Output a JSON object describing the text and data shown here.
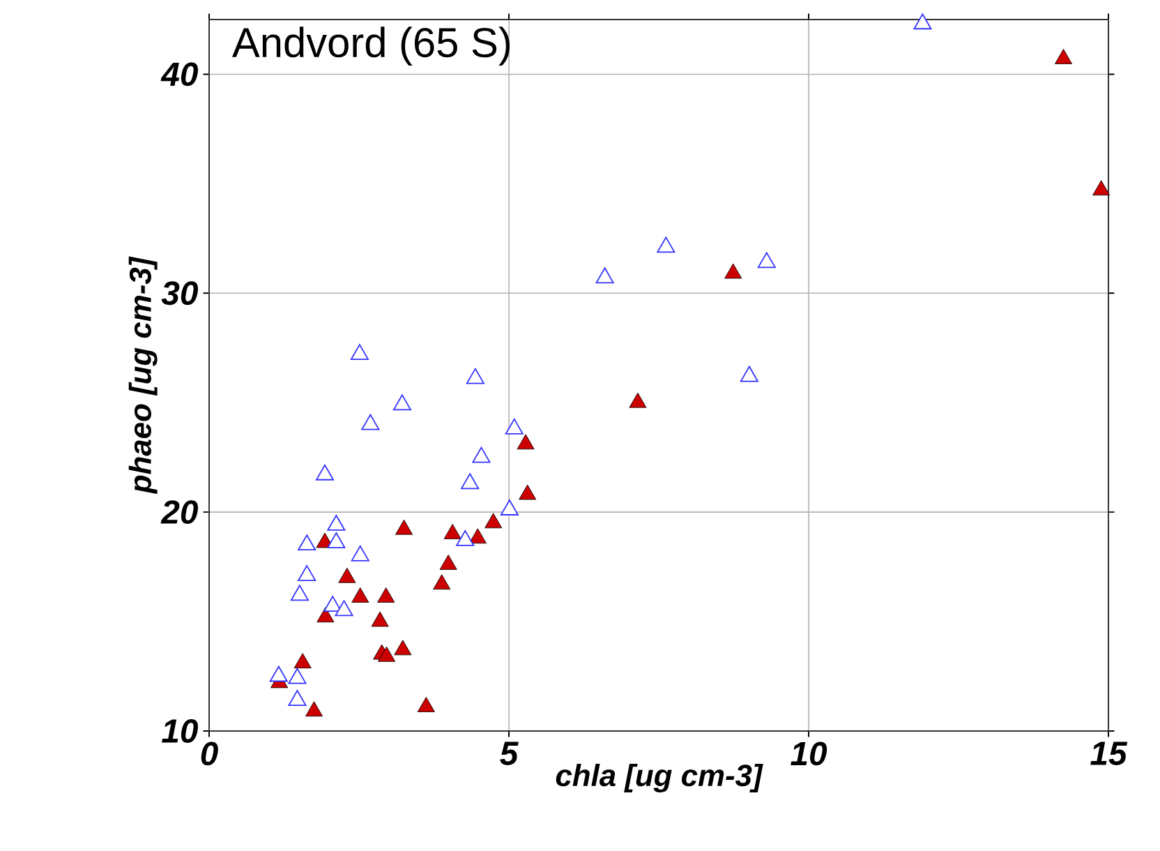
{
  "chart_data": {
    "type": "scatter",
    "title": "Andvord (65 S)",
    "xlabel": "chla [ug cm-3]",
    "ylabel": "phaeo [ug cm-3]",
    "xlim": [
      0,
      15
    ],
    "ylim": [
      10,
      42.5
    ],
    "xticks": [
      0,
      5,
      10,
      15
    ],
    "yticks": [
      10,
      20,
      30,
      40
    ],
    "grid": true,
    "marker": "triangle",
    "series": [
      {
        "color": "#cc0000",
        "x": [
          14.25,
          14.88,
          8.74,
          7.15,
          5.28,
          5.31,
          4.74,
          3.25,
          4.06,
          4.48,
          1.93,
          3.99,
          3.88,
          2.3,
          2.52,
          2.95,
          1.94,
          2.31,
          2.85,
          2.88,
          2.96,
          3.23,
          1.56,
          1.75,
          3.62,
          1.17
        ],
        "values": [
          40.7,
          34.7,
          30.9,
          25.0,
          23.1,
          20.8,
          19.5,
          19.2,
          19.0,
          18.8,
          18.6,
          17.6,
          16.7,
          17.0,
          16.1,
          16.1,
          15.2,
          null,
          15.0,
          13.5,
          13.4,
          13.7,
          13.1,
          10.9,
          11.1,
          12.2
        ]
      },
      {
        "color": "#3333ff",
        "x": [
          11.9,
          7.62,
          9.3,
          6.6,
          9.01,
          2.51,
          4.44,
          3.22,
          2.69,
          5.09,
          4.54,
          1.93,
          4.35,
          5.01,
          2.12,
          2.12,
          1.63,
          2.52,
          4.27,
          1.63,
          1.51,
          2.06,
          2.25,
          1.16,
          1.47,
          1.47
        ],
        "values": [
          42.3,
          32.1,
          31.4,
          30.7,
          26.2,
          27.2,
          26.1,
          24.9,
          24.0,
          23.8,
          22.5,
          21.7,
          21.3,
          20.1,
          19.4,
          18.6,
          18.5,
          18.0,
          18.7,
          17.1,
          16.2,
          15.7,
          15.5,
          12.5,
          12.4,
          11.4
        ]
      }
    ]
  }
}
